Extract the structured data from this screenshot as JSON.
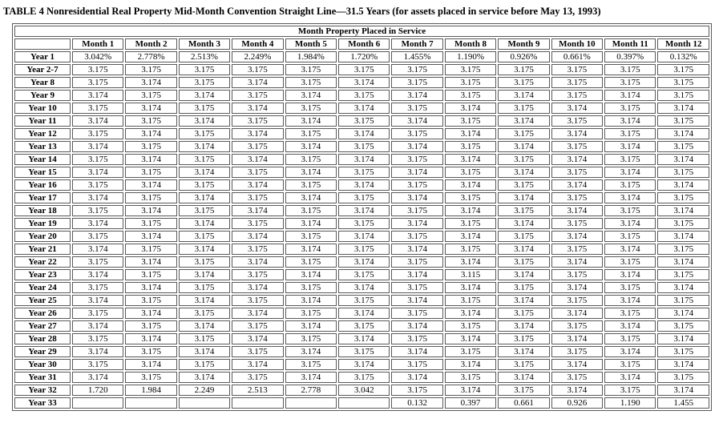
{
  "title": "TABLE 4 Nonresidential Real Property Mid-Month Convention Straight Line—31.5 Years (for assets placed in service before May 13, 1993)",
  "table": {
    "span_header": "Month Property Placed in Service",
    "columns": [
      "Month 1",
      "Month 2",
      "Month 3",
      "Month 4",
      "Month 5",
      "Month 6",
      "Month 7",
      "Month 8",
      "Month 9",
      "Month 10",
      "Month 11",
      "Month 12"
    ],
    "rows": [
      {
        "label": "Year 1",
        "values": [
          "3.042%",
          "2.778%",
          "2.513%",
          "2.249%",
          "1.984%",
          "1.720%",
          "1.455%",
          "1.190%",
          "0.926%",
          "0.661%",
          "0.397%",
          "0.132%"
        ]
      },
      {
        "label": "Year 2-7",
        "values": [
          "3.175",
          "3.175",
          "3.175",
          "3.175",
          "3.175",
          "3.175",
          "3.175",
          "3.175",
          "3.175",
          "3.175",
          "3.175",
          "3.175"
        ]
      },
      {
        "label": "Year 8",
        "values": [
          "3.175",
          "3.174",
          "3.175",
          "3.174",
          "3.175",
          "3.174",
          "3.175",
          "3.175",
          "3.175",
          "3.175",
          "3.175",
          "3.175"
        ]
      },
      {
        "label": "Year 9",
        "values": [
          "3.174",
          "3.175",
          "3.174",
          "3.175",
          "3.174",
          "3.175",
          "3.174",
          "3.175",
          "3.174",
          "3.175",
          "3.174",
          "3.175"
        ]
      },
      {
        "label": "Year 10",
        "values": [
          "3.175",
          "3.174",
          "3.175",
          "3.174",
          "3.175",
          "3.174",
          "3.175",
          "3.174",
          "3.175",
          "3.174",
          "3.175",
          "3.174"
        ]
      },
      {
        "label": "Year 11",
        "values": [
          "3.174",
          "3.175",
          "3.174",
          "3.175",
          "3.174",
          "3.175",
          "3.174",
          "3.175",
          "3.174",
          "3.175",
          "3.174",
          "3.175"
        ]
      },
      {
        "label": "Year 12",
        "values": [
          "3.175",
          "3.174",
          "3.175",
          "3.174",
          "3.175",
          "3.174",
          "3.175",
          "3.174",
          "3.175",
          "3.174",
          "3.175",
          "3.174"
        ]
      },
      {
        "label": "Year 13",
        "values": [
          "3.174",
          "3.175",
          "3.174",
          "3.175",
          "3.174",
          "3.175",
          "3.174",
          "3.175",
          "3.174",
          "3.175",
          "3.174",
          "3.175"
        ]
      },
      {
        "label": "Year 14",
        "values": [
          "3.175",
          "3.174",
          "3.175",
          "3.174",
          "3.175",
          "3.174",
          "3.175",
          "3.174",
          "3.175",
          "3.174",
          "3.175",
          "3.174"
        ]
      },
      {
        "label": "Year 15",
        "values": [
          "3.174",
          "3.175",
          "3.174",
          "3.175",
          "3.174",
          "3.175",
          "3.174",
          "3.175",
          "3.174",
          "3.175",
          "3.174",
          "3.175"
        ]
      },
      {
        "label": "Year 16",
        "values": [
          "3.175",
          "3.174",
          "3.175",
          "3.174",
          "3.175",
          "3.174",
          "3.175",
          "3.174",
          "3.175",
          "3.174",
          "3.175",
          "3.174"
        ]
      },
      {
        "label": "Year 17",
        "values": [
          "3.174",
          "3.175",
          "3.174",
          "3.175",
          "3.174",
          "3.175",
          "3.174",
          "3.175",
          "3.174",
          "3.175",
          "3.174",
          "3.175"
        ]
      },
      {
        "label": "Year 18",
        "values": [
          "3.175",
          "3.174",
          "3.175",
          "3.174",
          "3.175",
          "3.174",
          "3.175",
          "3.174",
          "3.175",
          "3.174",
          "3.175",
          "3.174"
        ]
      },
      {
        "label": "Year 19",
        "values": [
          "3.174",
          "3.175",
          "3.174",
          "3.175",
          "3.174",
          "3.175",
          "3.174",
          "3.175",
          "3.174",
          "3.175",
          "3.174",
          "3.175"
        ]
      },
      {
        "label": "Year 20",
        "values": [
          "3.175",
          "3.174",
          "3.175",
          "3.174",
          "3.175",
          "3.174",
          "3.175",
          "3.174",
          "3.175",
          "3.174",
          "3.175",
          "3.174"
        ]
      },
      {
        "label": "Year 21",
        "values": [
          "3.174",
          "3.175",
          "3.174",
          "3.175",
          "3.174",
          "3.175",
          "3.174",
          "3.175",
          "3.174",
          "3.175",
          "3.174",
          "3.175"
        ]
      },
      {
        "label": "Year 22",
        "values": [
          "3.175",
          "3.174",
          "3.175",
          "3.174",
          "3.175",
          "3.174",
          "3.175",
          "3.174",
          "3.175",
          "3.174",
          "3.175",
          "3.174"
        ]
      },
      {
        "label": "Year 23",
        "values": [
          "3.174",
          "3.175",
          "3.174",
          "3.175",
          "3.174",
          "3.175",
          "3.174",
          "3.115",
          "3.174",
          "3.175",
          "3.174",
          "3.175"
        ]
      },
      {
        "label": "Year 24",
        "values": [
          "3.175",
          "3.174",
          "3.175",
          "3.174",
          "3.175",
          "3.174",
          "3.175",
          "3.174",
          "3.175",
          "3.174",
          "3.175",
          "3.174"
        ]
      },
      {
        "label": "Year 25",
        "values": [
          "3.174",
          "3.175",
          "3.174",
          "3.175",
          "3.174",
          "3.175",
          "3.174",
          "3.175",
          "3.174",
          "3.175",
          "3.174",
          "3.175"
        ]
      },
      {
        "label": "Year 26",
        "values": [
          "3.175",
          "3.174",
          "3.175",
          "3.174",
          "3.175",
          "3.174",
          "3.175",
          "3.174",
          "3.175",
          "3.174",
          "3.175",
          "3.174"
        ]
      },
      {
        "label": "Year 27",
        "values": [
          "3.174",
          "3.175",
          "3.174",
          "3.175",
          "3.174",
          "3.175",
          "3.174",
          "3.175",
          "3.174",
          "3.175",
          "3.174",
          "3.175"
        ]
      },
      {
        "label": "Year 28",
        "values": [
          "3.175",
          "3.174",
          "3.175",
          "3.174",
          "3.175",
          "3.174",
          "3.175",
          "3.174",
          "3.175",
          "3.174",
          "3.175",
          "3.174"
        ]
      },
      {
        "label": "Year 29",
        "values": [
          "3.174",
          "3.175",
          "3.174",
          "3.175",
          "3.174",
          "3.175",
          "3.174",
          "3.175",
          "3.174",
          "3.175",
          "3.174",
          "3.175"
        ]
      },
      {
        "label": "Year 30",
        "values": [
          "3.175",
          "3.174",
          "3.175",
          "3.174",
          "3.175",
          "3.174",
          "3.175",
          "3.174",
          "3.175",
          "3.174",
          "3.175",
          "3.174"
        ]
      },
      {
        "label": "Year 31",
        "values": [
          "3.174",
          "3.175",
          "3.174",
          "3.175",
          "3.174",
          "3.175",
          "3.174",
          "3.175",
          "3.174",
          "3.175",
          "3.174",
          "3.175"
        ]
      },
      {
        "label": "Year 32",
        "values": [
          "1.720",
          "1.984",
          "2.249",
          "2.513",
          "2.778",
          "3.042",
          "3.175",
          "3.174",
          "3.175",
          "3.174",
          "3.175",
          "3.174"
        ]
      },
      {
        "label": "Year 33",
        "values": [
          "",
          "",
          "",
          "",
          "",
          "",
          "0.132",
          "0.397",
          "0.661",
          "0.926",
          "1.190",
          "1.455"
        ]
      }
    ]
  }
}
